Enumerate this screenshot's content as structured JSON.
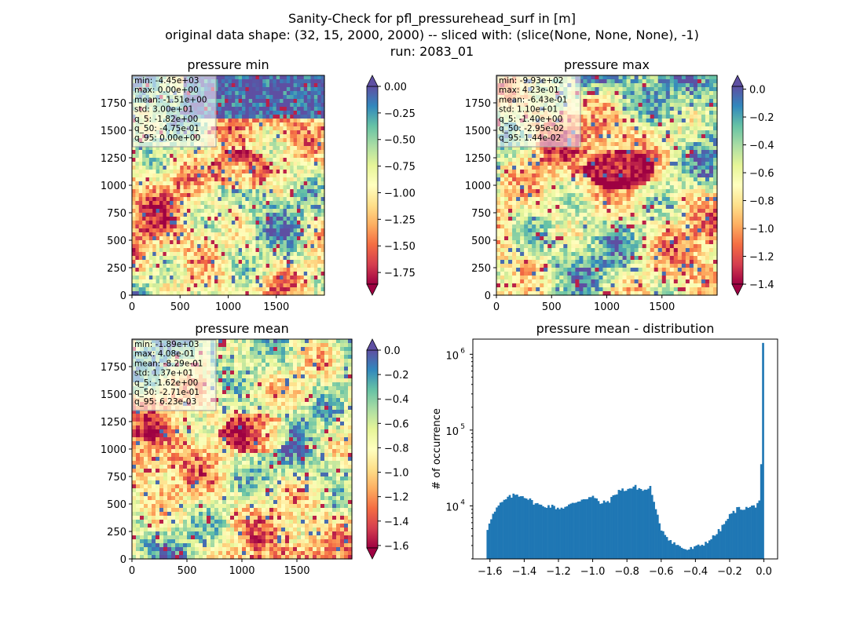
{
  "figure": {
    "title_lines": [
      "Sanity-Check for pfl_pressurehead_surf in [m]",
      "original data shape: (32, 15, 2000, 2000) -- sliced with: (slice(None, None, None), -1)",
      "run: 2083_01"
    ]
  },
  "chart_data": [
    {
      "type": "heatmap",
      "title": "pressure min",
      "cmap": "Spectral",
      "xticks": [
        "0",
        "500",
        "1000",
        "1500"
      ],
      "yticks": [
        "0",
        "250",
        "500",
        "750",
        "1000",
        "1250",
        "1500",
        "1750"
      ],
      "xlim": [
        0,
        2000
      ],
      "ylim": [
        0,
        2000
      ],
      "colorbar": {
        "range": [
          -1.86,
          0.0
        ],
        "ticks": [
          0.0,
          -0.25,
          -0.5,
          -0.75,
          -1.0,
          -1.25,
          -1.5,
          -1.75
        ],
        "tick_labels": [
          "0.00",
          "−0.25",
          "−0.50",
          "−0.75",
          "−1.00",
          "−1.25",
          "−1.50",
          "−1.75"
        ],
        "extend": "both"
      },
      "stats": [
        "min: -4.45e+03",
        "max: 0.00e+00",
        "mean: -1.51e+00",
        "std: 3.00e+01",
        "q_5: -1.82e+00",
        "q_50: -4.75e-01",
        "q_95: 0.00e+00"
      ]
    },
    {
      "type": "heatmap",
      "title": "pressure max",
      "cmap": "Spectral",
      "xticks": [
        "0",
        "500",
        "1000",
        "1500"
      ],
      "yticks": [
        "0",
        "250",
        "500",
        "750",
        "1000",
        "1250",
        "1500",
        "1750"
      ],
      "xlim": [
        0,
        2000
      ],
      "ylim": [
        0,
        2000
      ],
      "colorbar": {
        "range": [
          -1.4,
          0.02
        ],
        "ticks": [
          0.0,
          -0.2,
          -0.4,
          -0.6,
          -0.8,
          -1.0,
          -1.2,
          -1.4
        ],
        "tick_labels": [
          "0.0",
          "−0.2",
          "−0.4",
          "−0.6",
          "−0.8",
          "−1.0",
          "−1.2",
          "−1.4"
        ],
        "extend": "both"
      },
      "stats": [
        "min: -9.93e+02",
        "max: 4.23e-01",
        "mean: -6.43e-01",
        "std: 1.10e+01",
        "q_5: -1.40e+00",
        "q_50: -2.95e-02",
        "q_95: 1.44e-02"
      ]
    },
    {
      "type": "heatmap",
      "title": "pressure mean",
      "cmap": "Spectral",
      "xticks": [
        "0",
        "500",
        "1000",
        "1500"
      ],
      "yticks": [
        "0",
        "250",
        "500",
        "750",
        "1000",
        "1250",
        "1500",
        "1750"
      ],
      "xlim": [
        0,
        2000
      ],
      "ylim": [
        0,
        2000
      ],
      "colorbar": {
        "range": [
          -1.62,
          0.0
        ],
        "ticks": [
          0.0,
          -0.2,
          -0.4,
          -0.6,
          -0.8,
          -1.0,
          -1.2,
          -1.4,
          -1.6
        ],
        "tick_labels": [
          "0.0",
          "−0.2",
          "−0.4",
          "−0.6",
          "−0.8",
          "−1.0",
          "−1.2",
          "−1.4",
          "−1.6"
        ],
        "extend": "both"
      },
      "stats": [
        "min: -1.89e+03",
        "max: 4.08e-01",
        "mean: -8.29e-01",
        "std: 1.37e+01",
        "q_5: -1.62e+00",
        "q_50: -2.71e-01",
        "q_95: 6.23e-03"
      ]
    },
    {
      "type": "bar",
      "title": "pressure mean - distribution",
      "ylabel": "# of occurrence",
      "xlabel": "",
      "yscale": "log",
      "xlim": [
        -1.7,
        0.08
      ],
      "ylim_log10": [
        3.3,
        6.2
      ],
      "xticks": [
        -1.6,
        -1.4,
        -1.2,
        -1.0,
        -0.8,
        -0.6,
        -0.4,
        -0.2,
        0.0
      ],
      "xtick_labels": [
        "−1.6",
        "−1.4",
        "−1.2",
        "−1.0",
        "−0.8",
        "−0.6",
        "−0.4",
        "−0.2",
        "0.0"
      ],
      "yticks_log10": [
        4,
        5,
        6
      ],
      "ytick_labels": [
        "10",
        "10",
        "10"
      ],
      "ytick_exponents": [
        "4",
        "5",
        "6"
      ],
      "bin_range": [
        -1.62,
        0.0
      ],
      "color": "#1f77b4",
      "anchors_x": [
        -1.62,
        -1.6,
        -1.55,
        -1.5,
        -1.45,
        -1.4,
        -1.35,
        -1.3,
        -1.25,
        -1.2,
        -1.15,
        -1.1,
        -1.05,
        -1.0,
        -0.95,
        -0.9,
        -0.85,
        -0.8,
        -0.75,
        -0.7,
        -0.66,
        -0.64,
        -0.6,
        -0.55,
        -0.5,
        -0.45,
        -0.4,
        -0.35,
        -0.3,
        -0.25,
        -0.2,
        -0.15,
        -0.1,
        -0.05,
        -0.02,
        -0.01,
        0.0
      ],
      "anchors_log10": [
        3.65,
        3.82,
        4.0,
        4.1,
        4.15,
        4.13,
        4.05,
        4.0,
        4.0,
        3.97,
        3.99,
        4.05,
        4.1,
        4.12,
        4.03,
        4.07,
        4.2,
        4.22,
        4.25,
        4.2,
        4.25,
        4.0,
        3.7,
        3.55,
        3.47,
        3.42,
        3.45,
        3.5,
        3.58,
        3.7,
        3.87,
        3.97,
        3.97,
        4.0,
        4.1,
        4.55,
        6.15
      ]
    }
  ]
}
